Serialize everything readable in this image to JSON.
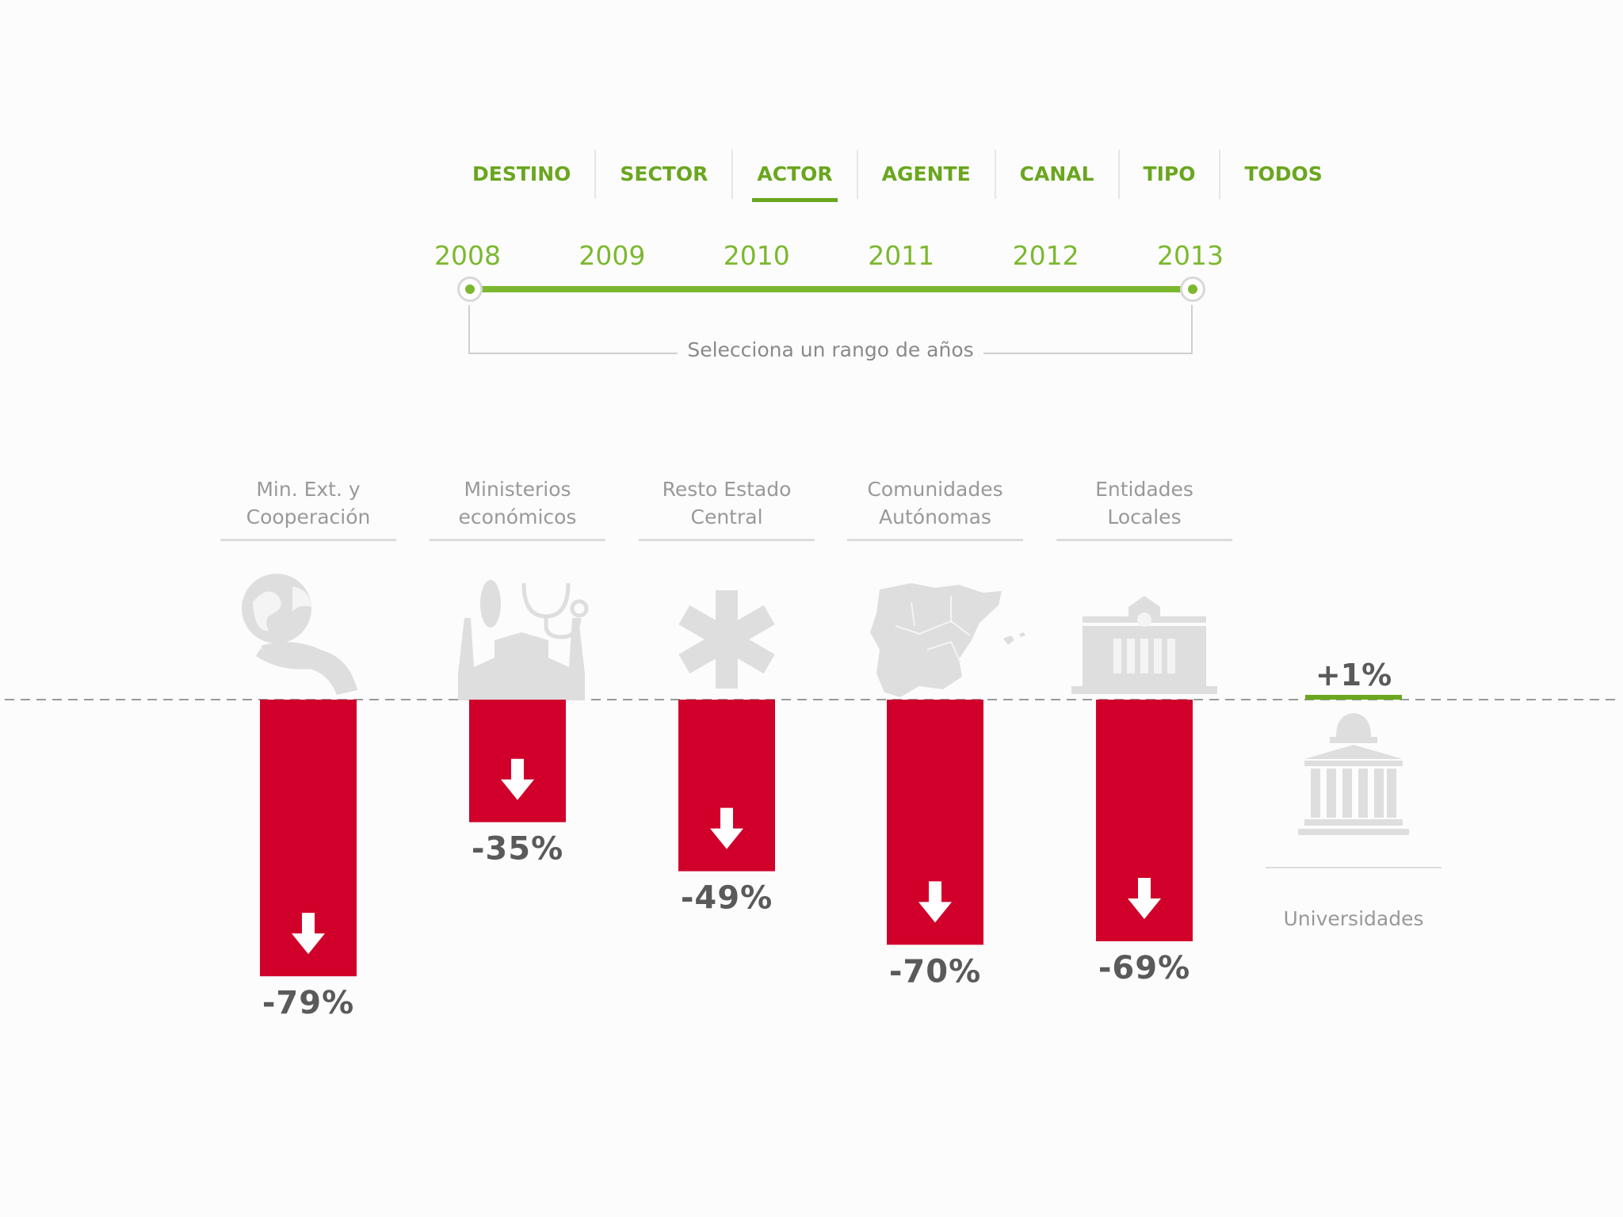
{
  "tabs": [
    {
      "label": "DESTINO",
      "active": false
    },
    {
      "label": "SECTOR",
      "active": false
    },
    {
      "label": "ACTOR",
      "active": true
    },
    {
      "label": "AGENTE",
      "active": false
    },
    {
      "label": "CANAL",
      "active": false
    },
    {
      "label": "TIPO",
      "active": false
    },
    {
      "label": "TODOS",
      "active": false
    }
  ],
  "years": [
    "2008",
    "2009",
    "2010",
    "2011",
    "2012",
    "2013"
  ],
  "range": {
    "start": "2008",
    "end": "2013",
    "caption": "Selecciona un rango de años"
  },
  "colors": {
    "accent": "#7cb82f",
    "tab_text": "#6aa61f",
    "negative": "#d0002b",
    "positive": "#6aa61f",
    "value_text": "#5a5a5a",
    "icon": "#dedede"
  },
  "chart_data": {
    "type": "bar",
    "categories": [
      "Min. Ext. y Cooperación",
      "Ministerios económicos",
      "Resto Estado Central",
      "Comunidades Autónomas",
      "Entidades Locales",
      "Universidades"
    ],
    "category_lines": [
      [
        "Min. Ext. y",
        "Cooperación"
      ],
      [
        "Ministerios",
        "económicos"
      ],
      [
        "Resto Estado",
        "Central"
      ],
      [
        "Comunidades",
        "Autónomas"
      ],
      [
        "Entidades",
        "Locales"
      ],
      [
        "Universidades"
      ]
    ],
    "values": [
      -79,
      -35,
      -49,
      -70,
      -69,
      1
    ],
    "value_labels": [
      "-79%",
      "-35%",
      "-49%",
      "-70%",
      "-69%",
      "+1%"
    ],
    "icons": [
      "globe-in-hand-icon",
      "factory-icon",
      "asterisk-icon",
      "spain-map-icon",
      "town-hall-icon",
      "university-icon"
    ],
    "unit": "%",
    "baseline": 0
  }
}
